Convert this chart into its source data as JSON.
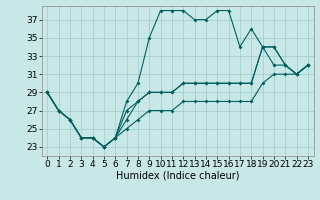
{
  "xlabel": "Humidex (Indice chaleur)",
  "background_color": "#c8e8e8",
  "grid_color": "#a0c8c8",
  "line_color": "#006060",
  "xlim": [
    -0.5,
    23.5
  ],
  "ylim": [
    22.0,
    38.5
  ],
  "yticks": [
    23,
    25,
    27,
    29,
    31,
    33,
    35,
    37
  ],
  "xticks": [
    0,
    1,
    2,
    3,
    4,
    5,
    6,
    7,
    8,
    9,
    10,
    11,
    12,
    13,
    14,
    15,
    16,
    17,
    18,
    19,
    20,
    21,
    22,
    23
  ],
  "line_wavy": [
    29,
    27,
    26,
    24,
    24,
    23,
    24,
    28,
    30,
    35,
    38,
    38,
    38,
    37,
    37,
    38,
    38,
    34,
    36,
    34,
    32,
    32,
    31,
    32
  ],
  "line_mid": [
    29,
    27,
    26,
    24,
    24,
    23,
    24,
    27,
    28,
    29,
    29,
    29,
    30,
    30,
    30,
    30,
    30,
    30,
    30,
    34,
    34,
    32,
    31,
    32
  ],
  "line_upper": [
    29,
    27,
    26,
    24,
    24,
    23,
    24,
    26,
    28,
    29,
    29,
    29,
    30,
    30,
    30,
    30,
    30,
    30,
    30,
    34,
    34,
    32,
    31,
    32
  ],
  "line_lower": [
    29,
    27,
    26,
    24,
    24,
    23,
    24,
    25,
    26,
    27,
    27,
    27,
    28,
    28,
    28,
    28,
    28,
    28,
    28,
    30,
    31,
    31,
    31,
    32
  ],
  "xlabel_fontsize": 7,
  "tick_fontsize": 6.5
}
